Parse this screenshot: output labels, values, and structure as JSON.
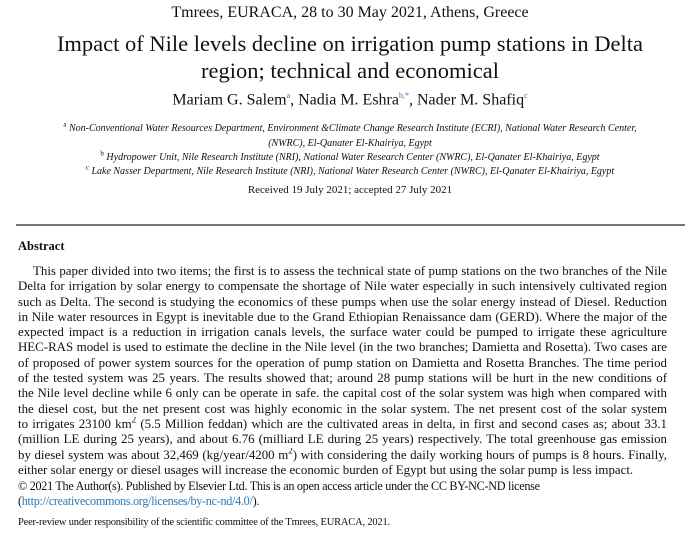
{
  "conference": "Tmrees, EURACA, 28 to 30 May 2021, Athens, Greece",
  "title_lines": [
    "Impact of Nile levels decline on irrigation pump stations in Delta",
    "region; technical and economical"
  ],
  "authors": [
    {
      "name": "Mariam G. Salem",
      "sup": "a",
      "sep": ", "
    },
    {
      "name": "Nadia M. Eshra",
      "sup": "b,*",
      "sep": ", "
    },
    {
      "name": "Nader M. Shafiq",
      "sup": "c",
      "sep": ""
    }
  ],
  "affiliations": {
    "a": {
      "mark": "a",
      "line1": "Non-Conventional Water Resources Department, Environment &Climate Change Research Institute (ECRI), National Water Research Center,",
      "line2": "(NWRC), El-Qanater El-Khairiya, Egypt"
    },
    "b": {
      "mark": "b",
      "text": "Hydropower Unit, Nile Research Institute (NRI), National Water Research Center (NWRC), El-Qanater El-Khairiya, Egypt"
    },
    "c": {
      "mark": "c",
      "text": "Lake Nasser Department, Nile Research Institute (NRI), National Water Research Center (NWRC), El-Qanater El-Khairiya, Egypt"
    }
  },
  "received": "Received 19 July 2021; accepted 27 July 2021",
  "abstract": {
    "heading": "Abstract",
    "lines": [
      {
        "pre": "This paper divided into two items; the first is to assess the technical state of pump stations on the two branches of the Nile"
      },
      {
        "pre": "Delta for irrigation by solar energy to compensate the shortage of Nile water especially in such intensively cultivated region"
      },
      {
        "pre": "such as Delta. The second is studying the economics of these pumps when use the solar energy instead of Diesel. Reduction"
      },
      {
        "pre": "in Nile water resources in Egypt is inevitable due to the Grand Ethiopian Renaissance dam (GERD). Where the major of the"
      },
      {
        "pre": "expected impact is a reduction in irrigation canals levels, the surface water could be pumped to irrigate these agriculture lands."
      },
      {
        "pre": "HEC-RAS model is used to estimate the decline in the Nile level (in the two branches; Damietta and Rosetta). Two cases are"
      },
      {
        "pre": "of proposed of power system sources for the operation of pump station on Damietta and Rosetta Branches. The time period"
      },
      {
        "pre": "of the tested system was 25 years. The results showed that; around 28 pump stations will be hurt in the new conditions of"
      },
      {
        "pre": "the Nile level decline while 6 only can be operate in safe. the capital cost of the solar system was high when compared with"
      },
      {
        "pre": "the diesel cost, but the net present cost was highly economic in the solar system. The net present cost of the solar system"
      },
      {
        "pre": "to irrigates 23100 km",
        "sup": "2",
        "post": " (5.5 Million feddan) which are the cultivated areas in delta, in first and second cases as; about 33.1"
      },
      {
        "pre": "(million LE during 25 years), and about 6.76 (milliard LE during 25 years) respectively. The total greenhouse gas emission"
      },
      {
        "pre": "by diesel system was about 32,469 (kg/year/4200 m",
        "sup": "2",
        "post": ") with considering the daily working hours of pumps is 8 hours. Finally,"
      },
      {
        "pre": "either solar energy or diesel usages will increase the economic burden of Egypt but using the solar pump is less impact."
      }
    ]
  },
  "copyright": "© 2021 The Author(s). Published by Elsevier Ltd. This is an open access article under the CC BY-NC-ND license",
  "license_link": {
    "open": "(",
    "url": "http://creativecommons.org/licenses/by-nc-nd/4.0/",
    "close": ")."
  },
  "peer_review": "Peer-review under responsibility of the scientific committee of the Tmrees, EURACA, 2021.",
  "colors": {
    "link": "#2a7ab8",
    "rule": "#777777"
  }
}
